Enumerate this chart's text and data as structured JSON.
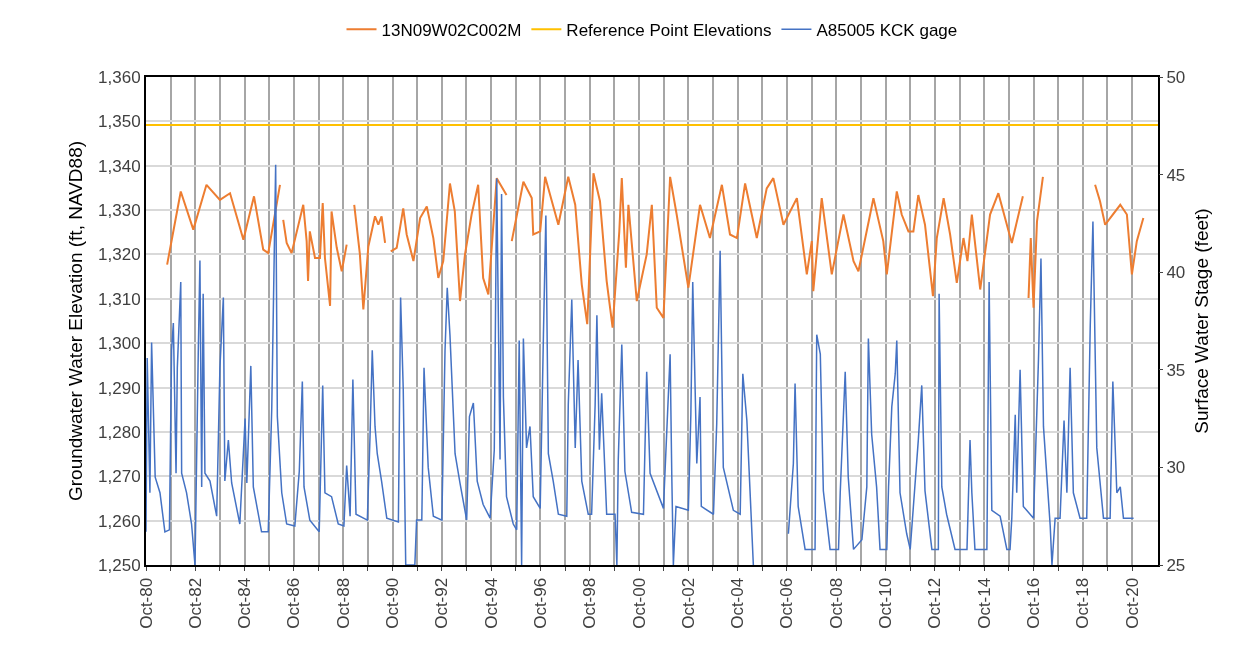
{
  "chart_data": {
    "type": "line",
    "ylabel": "Groundwater Water Elevation (ft, NAVD88)",
    "y2label": "Surface Water Stage (feet)",
    "xlim": [
      "1980-10-01",
      "2021-10-19"
    ],
    "xticks": [
      {
        "value": "1980-10-01",
        "label": "Oct-80"
      },
      {
        "value": "1981-10-01",
        "label": null
      },
      {
        "value": "1982-10-01",
        "label": "Oct-82"
      },
      {
        "value": "1983-10-01",
        "label": null
      },
      {
        "value": "1984-10-01",
        "label": "Oct-84"
      },
      {
        "value": "1985-10-01",
        "label": null
      },
      {
        "value": "1986-10-01",
        "label": "Oct-86"
      },
      {
        "value": "1987-10-01",
        "label": null
      },
      {
        "value": "1988-10-01",
        "label": "Oct-88"
      },
      {
        "value": "1989-10-01",
        "label": null
      },
      {
        "value": "1990-10-01",
        "label": "Oct-90"
      },
      {
        "value": "1991-10-01",
        "label": null
      },
      {
        "value": "1992-10-01",
        "label": "Oct-92"
      },
      {
        "value": "1993-10-01",
        "label": null
      },
      {
        "value": "1994-10-01",
        "label": "Oct-94"
      },
      {
        "value": "1995-10-01",
        "label": null
      },
      {
        "value": "1996-10-01",
        "label": "Oct-96"
      },
      {
        "value": "1997-10-01",
        "label": null
      },
      {
        "value": "1998-10-01",
        "label": "Oct-98"
      },
      {
        "value": "1999-10-01",
        "label": null
      },
      {
        "value": "2000-10-01",
        "label": "Oct-00"
      },
      {
        "value": "2001-10-01",
        "label": null
      },
      {
        "value": "2002-10-01",
        "label": "Oct-02"
      },
      {
        "value": "2003-10-01",
        "label": null
      },
      {
        "value": "2004-10-01",
        "label": "Oct-04"
      },
      {
        "value": "2005-10-01",
        "label": null
      },
      {
        "value": "2006-10-01",
        "label": "Oct-06"
      },
      {
        "value": "2007-10-01",
        "label": null
      },
      {
        "value": "2008-10-01",
        "label": "Oct-08"
      },
      {
        "value": "2009-10-01",
        "label": null
      },
      {
        "value": "2010-10-01",
        "label": "Oct-10"
      },
      {
        "value": "2011-10-01",
        "label": null
      },
      {
        "value": "2012-10-01",
        "label": "Oct-12"
      },
      {
        "value": "2013-10-01",
        "label": null
      },
      {
        "value": "2014-10-01",
        "label": "Oct-14"
      },
      {
        "value": "2015-10-01",
        "label": null
      },
      {
        "value": "2016-10-01",
        "label": "Oct-16"
      },
      {
        "value": "2017-10-01",
        "label": null
      },
      {
        "value": "2018-10-01",
        "label": "Oct-18"
      },
      {
        "value": "2019-10-01",
        "label": null
      },
      {
        "value": "2020-10-01",
        "label": "Oct-20"
      }
    ],
    "ylim": [
      1250,
      1360
    ],
    "yticks": [
      {
        "value": 1250,
        "label": "1,250"
      },
      {
        "value": 1260,
        "label": "1,260"
      },
      {
        "value": 1270,
        "label": "1,270"
      },
      {
        "value": 1280,
        "label": "1,280"
      },
      {
        "value": 1290,
        "label": "1,290"
      },
      {
        "value": 1300,
        "label": "1,300"
      },
      {
        "value": 1310,
        "label": "1,310"
      },
      {
        "value": 1320,
        "label": "1,320"
      },
      {
        "value": 1330,
        "label": "1,330"
      },
      {
        "value": 1340,
        "label": "1,340"
      },
      {
        "value": 1350,
        "label": "1,350"
      },
      {
        "value": 1360,
        "label": "1,360"
      }
    ],
    "y2lim": [
      25,
      50
    ],
    "y2ticks": [
      25,
      30,
      35,
      40,
      45,
      50
    ],
    "grid": true,
    "legend": "top",
    "series": [
      {
        "name": "13N09W02C002M",
        "color": "#ed7d31",
        "x": [
          "1981-08-10",
          "1982-02-28",
          "1982-09-02",
          "1983-03-16",
          "1983-10-01",
          "1984-02-28",
          "1984-09-13",
          "1985-02-17",
          "1985-07-04",
          "1985-09-16",
          "1986-03-09",
          "1986-04-01",
          "1986-04-26",
          "1986-06-16",
          "1986-08-28",
          "1987-02-17",
          "1987-04-08",
          "1987-04-29",
          "1987-05-25",
          "1987-08-10",
          "1987-10-22",
          "1987-12-02",
          "1988-01-04",
          "1988-03-20",
          "1988-04-11",
          "1988-06-27",
          "1988-09-09",
          "1988-11-21",
          "1989-01-01",
          "1989-03-13",
          "1989-06-05",
          "1989-07-26",
          "1989-10-08",
          "1990-01-15",
          "1990-03-05",
          "1990-04-22",
          "1990-06-13",
          "1990-07-19",
          "1990-09-05",
          "1990-12-02",
          "1991-03-09",
          "1991-04-29",
          "1991-08-07",
          "1991-11-14",
          "1992-02-21",
          "1992-05-28",
          "1992-08-10",
          "1992-10-22",
          "1993-01-29",
          "1993-04-11",
          "1993-06-27",
          "1993-09-09",
          "1993-12-16",
          "1994-03-23",
          "1994-06-05",
          "1994-08-21",
          "1994-12-23",
          "1995-05-17",
          "1995-07-01",
          "1995-08-03",
          "1996-01-22",
          "1996-05-25",
          "1996-06-16",
          "1996-09-27",
          "1996-12-09",
          "1997-06-23",
          "1997-11-17",
          "1998-02-28",
          "1998-06-05",
          "1998-08-25",
          "1998-11-25",
          "1999-03-02",
          "1999-06-09",
          "1999-09-05",
          "1999-12-13",
          "2000-01-19",
          "2000-03-20",
          "2000-04-26",
          "2000-08-28",
          "2001-01-22",
          "2001-04-08",
          "2001-06-20",
          "2001-09-27",
          "2002-01-04",
          "2002-04-11",
          "2002-10-01",
          "2003-03-23",
          "2003-08-17",
          "2004-02-10",
          "2004-06-09",
          "2004-09-20",
          "2005-01-19",
          "2005-07-11",
          "2005-12-05",
          "2006-03-13",
          "2006-08-10",
          "2007-02-25",
          "2007-07-22",
          "2007-10-04",
          "2007-10-26",
          "2008-02-28",
          "2008-07-26",
          "2009-01-15",
          "2009-06-13",
          "2009-08-25",
          "2010-02-14",
          "2010-04-04",
          "2010-08-28",
          "2010-10-19",
          "2011-03-16",
          "2011-05-28",
          "2011-09-05",
          "2011-11-17",
          "2012-01-29",
          "2012-05-07",
          "2012-09-02",
          "2012-10-29",
          "2013-02-07",
          "2013-05-14",
          "2013-08-21",
          "2013-11-28",
          "2014-01-26",
          "2014-04-01",
          "2014-08-03",
          "2014-12-27",
          "2015-04-29",
          "2015-11-14",
          "2016-04-26",
          "2016-06-13",
          "2016-07-19",
          "2016-08-21",
          "2016-10-01",
          "2016-11-21",
          "2017-02-17",
          "2018-01-01",
          "2019-04-01",
          "2019-06-13",
          "2019-08-28",
          "2019-11-10",
          "2020-04-08",
          "2020-07-15",
          "2020-09-27",
          "2020-12-09",
          "2021-03-16"
        ],
        "values": [
          1317.7,
          1334.2,
          1325.6,
          1335.7,
          1332.3,
          1333.8,
          1323.3,
          1333.1,
          1321.1,
          1320.3,
          1335.7,
          null,
          1327.8,
          1322.6,
          1320.3,
          1331.2,
          1323,
          1314,
          1325.2,
          1319.2,
          1319.2,
          1331.6,
          1319.2,
          1308.4,
          1329.7,
          1321.5,
          1316.2,
          1322.2,
          null,
          1331.2,
          1320,
          1307.6,
          1321.8,
          1328.6,
          1326.7,
          1328.6,
          1322.6,
          null,
          1320.7,
          1321.5,
          1330.4,
          1324.5,
          1318.5,
          1328.2,
          1330.8,
          1323.7,
          1314.7,
          1318.5,
          1336,
          1329.7,
          1309.5,
          1320,
          1329,
          1335.7,
          1314.7,
          1311,
          1337.2,
          1333.4,
          null,
          1323,
          1336.4,
          1332.7,
          1324.5,
          1325.2,
          1337.5,
          1326.7,
          1337.5,
          1331.2,
          1313.2,
          1304.3,
          1338.3,
          1332,
          1314,
          1303.5,
          1325.2,
          1337.2,
          1317,
          1331.2,
          1309.5,
          1320,
          1331.2,
          1308,
          1305.7,
          1337.5,
          1329,
          1312.5,
          1331.2,
          1323.7,
          1335.7,
          1324.5,
          1323.7,
          1336,
          1323.7,
          1334.9,
          1337.2,
          1326.7,
          1332.7,
          1315.5,
          1323,
          1311.7,
          1332.7,
          1315.5,
          1329,
          1318.5,
          1316.2,
          1329,
          1332.7,
          1323,
          1315.5,
          1334.2,
          1329,
          1325.2,
          1325.2,
          1333.4,
          1326.7,
          1310.6,
          1323.7,
          1332.7,
          1324.5,
          1313.6,
          1323.7,
          1318.5,
          1329,
          1312.1,
          1329,
          1333.8,
          1322.6,
          1333.1,
          null,
          1310.2,
          1323.7,
          1308,
          1327.4,
          1337.5,
          null,
          1335.7,
          1332,
          1326.7,
          1328.2,
          1331.2,
          1329,
          1315.5,
          1323,
          1328.2
        ]
      },
      {
        "name": "Reference Point Elevations",
        "color": "#ffc000",
        "x": [
          "1980-10-01",
          "2021-10-19"
        ],
        "values": [
          1349.2,
          1349.2
        ]
      },
      {
        "name": "A85005 KCK gage",
        "color": "#4472c4",
        "axis": "y2",
        "x": [
          "1980-10-01",
          "1980-10-19",
          "1980-11-28",
          "1980-12-23",
          "1981-02-14",
          "1981-04-26",
          "1981-07-08",
          "1981-09-13",
          "1981-10-15",
          "1981-11-10",
          "1981-12-20",
          "1982-01-08",
          "1982-02-28",
          "1982-03-13",
          "1982-05-25",
          "1982-08-07",
          "1982-09-27",
          "1982-11-14",
          "1982-12-09",
          "1983-01-04",
          "1983-01-26",
          "1983-02-21",
          "1983-05-07",
          "1983-08-14",
          "1983-10-01",
          "1983-11-21",
          "1983-12-13",
          "1984-02-03",
          "1984-03-23",
          "1984-07-22",
          "1984-10-08",
          "1984-11-03",
          "1985-01-01",
          "1985-02-07",
          "1985-06-09",
          "1985-09-16",
          "1985-11-07",
          "1986-01-04",
          "1986-01-29",
          "1986-04-04",
          "1986-06-16",
          "1986-10-15",
          "1986-12-20",
          "1987-02-03",
          "1987-02-28",
          "1987-05-25",
          "1987-10-11",
          "1987-12-02",
          "1988-01-04",
          "1988-04-11",
          "1988-07-19",
          "1988-10-11",
          "1988-11-21",
          "1989-01-11",
          "1989-02-21",
          "1989-04-08",
          "1989-09-23",
          "1989-11-03",
          "1989-12-05",
          "1990-01-15",
          "1990-02-17",
          "1990-04-22",
          "1990-07-08",
          "1990-12-27",
          "1991-01-29",
          "1991-03-09",
          "1991-04-15",
          "1991-08-28",
          "1991-09-23",
          "1991-12-09",
          "1992-01-11",
          "1992-03-13",
          "1992-05-28",
          "1992-10-01",
          "1992-11-17",
          "1992-12-20",
          "1993-01-29",
          "1993-04-15",
          "1993-06-27",
          "1993-10-04",
          "1993-11-14",
          "1994-01-11",
          "1994-03-09",
          "1994-06-05",
          "1994-09-16",
          "1994-11-17",
          "1994-12-23",
          "1995-02-10",
          "1995-03-05",
          "1995-04-01",
          "1995-05-17",
          "1995-08-25",
          "1995-10-15",
          "1995-11-21",
          "1995-12-27",
          "1996-01-22",
          "1996-03-09",
          "1996-04-29",
          "1996-06-16",
          "1996-09-27",
          "1996-11-14",
          "1996-12-20",
          "1997-01-26",
          "1997-04-08",
          "1997-06-23",
          "1997-10-26",
          "1997-11-17",
          "1998-01-08",
          "1998-02-28",
          "1998-04-11",
          "1998-06-05",
          "1998-09-09",
          "1998-10-29",
          "1998-12-20",
          "1999-01-15",
          "1999-02-21",
          "1999-03-27",
          "1999-06-09",
          "1999-10-11",
          "1999-11-07",
          "1999-11-28",
          "2000-01-19",
          "2000-03-05",
          "2000-06-13",
          "2000-12-05",
          "2001-01-22",
          "2001-03-13",
          "2001-09-27",
          "2002-01-04",
          "2002-01-29",
          "2002-02-21",
          "2002-04-01",
          "2002-10-01",
          "2002-11-07",
          "2002-12-05",
          "2003-02-03",
          "2003-03-23",
          "2003-04-11",
          "2003-10-08",
          "2003-11-25",
          "2004-01-15",
          "2004-03-02",
          "2004-07-29",
          "2004-11-07",
          "2004-12-16",
          "2005-02-14",
          "2005-05-21",
          "2006-01-01",
          "2006-10-22",
          "2007-01-04",
          "2007-01-29",
          "2007-03-16",
          "2007-06-27",
          "2007-11-21",
          "2007-12-16",
          "2008-02-07",
          "2008-03-23",
          "2008-07-01",
          "2008-11-03",
          "2008-11-28",
          "2009-02-10",
          "2009-03-27",
          "2009-06-13",
          "2009-10-15",
          "2009-12-27",
          "2010-01-19",
          "2010-03-09",
          "2010-05-21",
          "2010-07-11",
          "2010-10-19",
          "2010-11-14",
          "2011-01-01",
          "2011-02-21",
          "2011-03-16",
          "2011-05-03",
          "2011-08-10",
          "2011-10-01",
          "2012-01-29",
          "2012-03-20",
          "2012-05-07",
          "2012-08-17",
          "2012-11-21",
          "2012-12-02",
          "2013-01-11",
          "2013-03-23",
          "2013-07-26",
          "2014-01-19",
          "2014-03-05",
          "2014-04-01",
          "2014-05-17",
          "2014-11-10",
          "2014-12-13",
          "2015-01-22",
          "2015-05-25",
          "2015-09-02",
          "2015-10-19",
          "2015-11-14",
          "2016-01-04",
          "2016-01-26",
          "2016-03-16",
          "2016-05-03",
          "2016-10-01",
          "2016-12-13",
          "2017-01-19",
          "2017-02-25",
          "2017-06-05",
          "2017-07-01",
          "2017-08-17",
          "2017-10-29",
          "2017-12-27",
          "2018-02-07",
          "2018-03-27",
          "2018-05-14",
          "2018-08-21",
          "2018-11-28",
          "2019-01-19",
          "2019-02-28",
          "2019-04-26",
          "2019-08-03",
          "2019-11-10",
          "2019-12-20",
          "2020-02-17",
          "2020-04-08",
          "2020-05-25",
          "2020-10-22"
        ],
        "values": [
          26.7,
          35.6,
          28.7,
          36.4,
          29.5,
          28.7,
          26.7,
          26.8,
          36.0,
          37.4,
          29.7,
          35.1,
          39.5,
          29.7,
          28.7,
          27.1,
          25,
          35.8,
          40.6,
          29.0,
          38.9,
          29.7,
          29.3,
          27.5,
          35.1,
          38.7,
          29.3,
          31.4,
          29.2,
          27.1,
          32.5,
          29.2,
          35.2,
          29.0,
          26.7,
          26.7,
          33.0,
          45.5,
          32.6,
          28.7,
          27.1,
          27.0,
          29.8,
          34.4,
          29.0,
          27.3,
          26.7,
          34.2,
          28.7,
          28.5,
          27.1,
          27.0,
          30.1,
          27.5,
          34.5,
          27.6,
          27.3,
          31.7,
          36.0,
          32.1,
          30.7,
          29.3,
          27.4,
          27.2,
          38.7,
          34.0,
          25,
          25,
          27.3,
          27.3,
          35.1,
          30.0,
          27.5,
          27.3,
          36.0,
          39.2,
          36.8,
          30.7,
          29.2,
          27.3,
          32.6,
          33.3,
          29.3,
          28.1,
          27.4,
          30.9,
          44.8,
          30.4,
          44.0,
          33.6,
          28.5,
          27.1,
          26.8,
          36.5,
          25,
          36.6,
          31.0,
          32.1,
          28.5,
          27.9,
          36.8,
          42.9,
          30.7,
          29.3,
          27.6,
          27.5,
          33.2,
          38.6,
          31.0,
          35.5,
          29.3,
          27.6,
          27.6,
          33.2,
          37.8,
          30.9,
          33.8,
          27.6,
          27.6,
          25,
          30.4,
          36.3,
          29.8,
          27.7,
          27.6,
          34.9,
          29.7,
          27.9,
          35.8,
          29.5,
          25,
          28.0,
          27.8,
          32.7,
          39.5,
          30.2,
          33.6,
          28.0,
          27.6,
          32.2,
          41.1,
          30.0,
          27.8,
          27.6,
          34.8,
          32.4,
          25,
          null,
          26.6,
          30.2,
          34.3,
          28.0,
          25.8,
          25.8,
          36.8,
          35.8,
          28.8,
          25.8,
          25.8,
          28.7,
          34.9,
          29.5,
          25.8,
          26.3,
          29.0,
          36.6,
          31.7,
          29.0,
          25.8,
          25.8,
          29.0,
          33.1,
          34.8,
          36.5,
          28.7,
          26.6,
          25.8,
          31.4,
          34.2,
          28.8,
          25.8,
          25.8,
          38.9,
          29.0,
          27.6,
          25.8,
          25.8,
          31.4,
          28.7,
          25.8,
          25.8,
          39.5,
          27.8,
          27.5,
          25.8,
          25.8,
          27.4,
          32.7,
          28.7,
          35.0,
          28.0,
          27.4,
          35.5,
          40.7,
          32.1,
          27.0,
          25,
          27.4,
          27.4,
          32.4,
          28.7,
          35.1,
          28.7,
          27.4,
          27.4,
          37.2,
          42.6,
          31.0,
          27.4,
          27.4,
          34.4,
          28.7,
          29.0,
          27.4,
          27.4
        ]
      }
    ]
  }
}
